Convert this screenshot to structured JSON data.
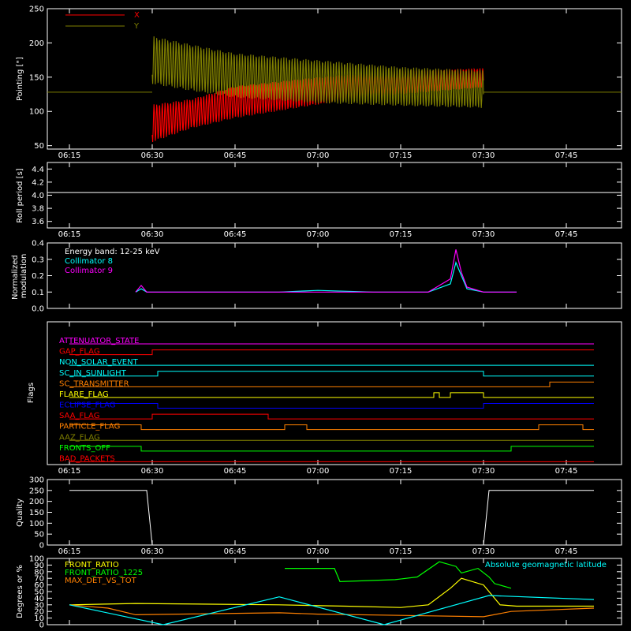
{
  "x_ticks": [
    "06:15",
    "06:30",
    "06:45",
    "07:00",
    "07:15",
    "07:30",
    "07:45"
  ],
  "colors": {
    "x": "#ff0000",
    "y": "#808000",
    "white": "#ffffff",
    "cyan": "#00ffff",
    "magenta": "#ff00ff",
    "green": "#00ff00",
    "yellow": "#ffff00",
    "orange": "#ff8000",
    "blue": "#0000ff",
    "olive": "#808000"
  },
  "chart_data": [
    {
      "id": "pointing",
      "type": "line",
      "ylabel": "Pointing [\"]",
      "ylim": [
        45,
        250
      ],
      "yticks": [
        50,
        100,
        150,
        200,
        250
      ],
      "legend": [
        {
          "name": "X",
          "color": "#ff0000"
        },
        {
          "name": "Y",
          "color": "#808000"
        }
      ],
      "series": [
        {
          "name": "X",
          "x": [
            "06:15",
            "06:29",
            "06:30",
            "06:37",
            "06:45",
            "07:00",
            "07:15",
            "07:30",
            "07:50"
          ],
          "y_upper": [
            128,
            128,
            110,
            118,
            137,
            150,
            160,
            163,
            128
          ],
          "y_lower": [
            128,
            128,
            55,
            75,
            90,
            110,
            125,
            135,
            128
          ]
        },
        {
          "name": "Y",
          "x": [
            "06:15",
            "06:29",
            "06:30",
            "06:37",
            "06:45",
            "07:00",
            "07:15",
            "07:30",
            "07:50"
          ],
          "y_upper": [
            128,
            128,
            210,
            198,
            185,
            175,
            165,
            160,
            128
          ],
          "y_lower": [
            128,
            128,
            140,
            130,
            120,
            112,
            108,
            105,
            128
          ]
        }
      ]
    },
    {
      "id": "roll",
      "type": "line",
      "ylabel": "Roll period [s]",
      "ylim": [
        3.5,
        4.5
      ],
      "yticks": [
        "3.6",
        "3.8",
        "4.0",
        "4.2",
        "4.4"
      ],
      "series": [
        {
          "name": "",
          "x": [
            "06:15",
            "07:50"
          ],
          "y": [
            4.04,
            4.04
          ]
        }
      ]
    },
    {
      "id": "modulation",
      "type": "line",
      "ylabel": "Normalized modulation",
      "ylim": [
        0,
        0.4
      ],
      "yticks": [
        "0.0",
        "0.1",
        "0.2",
        "0.3",
        "0.4"
      ],
      "annotations": [
        "Energy band: 12-25 keV",
        "Collimator 8",
        "Collimator 9"
      ],
      "series": [
        {
          "name": "Collimator 8",
          "x": [
            "06:27",
            "06:28",
            "06:29",
            "06:53",
            "07:00",
            "07:10",
            "07:20",
            "07:24",
            "07:25",
            "07:26",
            "07:27",
            "07:30",
            "07:36"
          ],
          "y": [
            0.1,
            0.12,
            0.1,
            0.1,
            0.11,
            0.1,
            0.1,
            0.15,
            0.28,
            0.2,
            0.12,
            0.1,
            0.1
          ]
        },
        {
          "name": "Collimator 9",
          "x": [
            "06:27",
            "06:28",
            "06:29",
            "06:53",
            "07:00",
            "07:10",
            "07:20",
            "07:24",
            "07:25",
            "07:26",
            "07:27",
            "07:30",
            "07:36"
          ],
          "y": [
            0.1,
            0.14,
            0.1,
            0.1,
            0.1,
            0.1,
            0.1,
            0.18,
            0.36,
            0.22,
            0.13,
            0.1,
            0.1
          ]
        }
      ]
    },
    {
      "id": "flags",
      "type": "line",
      "ylabel": "Flags",
      "flags": [
        {
          "name": "ATTENUATOR_STATE",
          "color": "#ff00ff",
          "steps": [
            [
              "06:15",
              0
            ],
            [
              "07:50",
              0
            ]
          ]
        },
        {
          "name": "GAP_FLAG",
          "color": "#ff0000",
          "steps": [
            [
              "06:15",
              0
            ],
            [
              "06:30",
              1
            ],
            [
              "07:50",
              1
            ]
          ]
        },
        {
          "name": "NON_SOLAR_EVENT",
          "color": "#00ffff",
          "steps": [
            [
              "06:15",
              0
            ],
            [
              "07:50",
              0
            ]
          ]
        },
        {
          "name": "SC_IN_SUNLIGHT",
          "color": "#00ffff",
          "steps": [
            [
              "06:15",
              0
            ],
            [
              "06:31",
              1
            ],
            [
              "07:30",
              0
            ],
            [
              "07:50",
              0
            ]
          ]
        },
        {
          "name": "SC_TRANSMITTER",
          "color": "#ff8000",
          "steps": [
            [
              "06:15",
              0
            ],
            [
              "07:42",
              1
            ],
            [
              "07:50",
              1
            ]
          ]
        },
        {
          "name": "FLARE_FLAG",
          "color": "#ffff00",
          "steps": [
            [
              "06:15",
              0
            ],
            [
              "07:21",
              1
            ],
            [
              "07:22",
              0
            ],
            [
              "07:24",
              1
            ],
            [
              "07:30",
              0
            ],
            [
              "07:50",
              0
            ]
          ]
        },
        {
          "name": "ECLIPSE_FLAG",
          "color": "#0000ff",
          "steps": [
            [
              "06:15",
              1
            ],
            [
              "06:31",
              0
            ],
            [
              "07:30",
              1
            ],
            [
              "07:50",
              1
            ]
          ]
        },
        {
          "name": "SAA_FLAG",
          "color": "#ff0000",
          "steps": [
            [
              "06:15",
              0
            ],
            [
              "06:30",
              1
            ],
            [
              "06:51",
              0
            ],
            [
              "07:50",
              0
            ]
          ]
        },
        {
          "name": "PARTICLE_FLAG",
          "color": "#ff8000",
          "steps": [
            [
              "06:15",
              1
            ],
            [
              "06:28",
              0
            ],
            [
              "06:54",
              1
            ],
            [
              "06:58",
              0
            ],
            [
              "07:40",
              1
            ],
            [
              "07:48",
              0
            ],
            [
              "07:50",
              0
            ]
          ]
        },
        {
          "name": "AAZ_FLAG",
          "color": "#808000",
          "steps": [
            [
              "06:15",
              0
            ],
            [
              "07:50",
              0
            ]
          ]
        },
        {
          "name": "FRONTS_OFF",
          "color": "#00ff00",
          "steps": [
            [
              "06:15",
              1
            ],
            [
              "06:28",
              0
            ],
            [
              "07:35",
              1
            ],
            [
              "07:50",
              1
            ]
          ]
        },
        {
          "name": "BAD_PACKETS",
          "color": "#ff0000",
          "steps": [
            [
              "06:15",
              0
            ],
            [
              "07:50",
              0
            ]
          ]
        }
      ]
    },
    {
      "id": "quality",
      "type": "line",
      "ylabel": "Quality",
      "ylim": [
        0,
        300
      ],
      "yticks": [
        0,
        50,
        100,
        150,
        200,
        250,
        300
      ],
      "series": [
        {
          "name": "",
          "x": [
            "06:15",
            "06:29",
            "06:30",
            "07:30",
            "07:31",
            "07:50"
          ],
          "y": [
            250,
            250,
            0,
            0,
            250,
            250
          ]
        }
      ]
    },
    {
      "id": "ratios",
      "type": "line",
      "ylabel": "Degrees or %",
      "ylim": [
        0,
        100
      ],
      "yticks": [
        0,
        10,
        20,
        30,
        40,
        50,
        60,
        70,
        80,
        90,
        100
      ],
      "series": [
        {
          "name": "FRONT_RATIO",
          "color": "#ffff00",
          "x": [
            "06:15",
            "06:27",
            "06:53",
            "07:05",
            "07:15",
            "07:20",
            "07:24",
            "07:26",
            "07:30",
            "07:33",
            "07:36",
            "07:50"
          ],
          "y": [
            30,
            32,
            30,
            28,
            26,
            30,
            55,
            70,
            60,
            30,
            28,
            28
          ]
        },
        {
          "name": "FRONT_RATIO_1225",
          "color": "#00ff00",
          "x": [
            "06:15",
            "06:28",
            "06:29",
            "06:30",
            "06:53",
            "06:54",
            "07:03",
            "07:04",
            "07:14",
            "07:18",
            "07:22",
            "07:25",
            "07:26",
            "07:29",
            "07:31",
            "07:32",
            "07:35",
            "07:36",
            "07:50"
          ],
          "y": [
            null,
            null,
            65,
            null,
            null,
            85,
            85,
            65,
            68,
            72,
            95,
            88,
            78,
            85,
            72,
            62,
            55,
            null,
            null
          ]
        },
        {
          "name": "MAX_DET_VS_TOT",
          "color": "#ff8000",
          "x": [
            "06:15",
            "06:22",
            "06:27",
            "06:53",
            "07:00",
            "07:15",
            "07:30",
            "07:35",
            "07:50"
          ],
          "y": [
            30,
            25,
            15,
            18,
            16,
            14,
            12,
            20,
            25
          ]
        },
        {
          "name": "Absolute geomagnetic latitude",
          "color": "#00ffff",
          "x": [
            "06:15",
            "06:32",
            "06:53",
            "07:12",
            "07:31",
            "07:50"
          ],
          "y": [
            30,
            0,
            42,
            0,
            44,
            38
          ]
        }
      ]
    }
  ]
}
